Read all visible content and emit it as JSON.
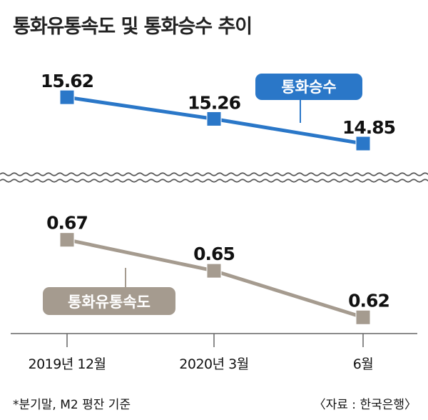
{
  "title": "통화유통속도 및 통화승수 추이",
  "footnote": "*분기말, M2 평잔 기준",
  "source": "〈자료 : 한국은행〉",
  "colors": {
    "multiplier": "#2a77c8",
    "velocity": "#a59b8f",
    "axis": "#666666"
  },
  "chart_data": {
    "type": "line",
    "categories": [
      "2019년 12월",
      "2020년 3월",
      "6월"
    ],
    "broken_axis": true,
    "series": [
      {
        "name": "통화승수",
        "values": [
          15.62,
          15.26,
          14.85
        ],
        "labels": [
          "15.62",
          "15.26",
          "14.85"
        ],
        "range": [
          14.6,
          15.8
        ]
      },
      {
        "name": "통화유통속도",
        "values": [
          0.67,
          0.65,
          0.62
        ],
        "labels": [
          "0.67",
          "0.65",
          "0.62"
        ],
        "range": [
          0.61,
          0.68
        ]
      }
    ]
  }
}
